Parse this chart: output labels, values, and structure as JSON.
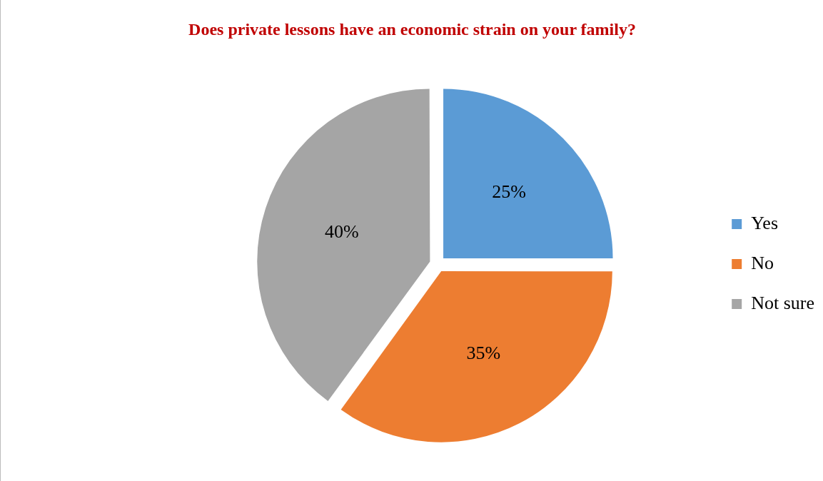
{
  "chart_data": {
    "type": "pie",
    "title": "Does private lessons have an economic strain on your family?",
    "categories": [
      "Yes",
      "No",
      "Not sure"
    ],
    "values": [
      25,
      35,
      40
    ],
    "value_labels": [
      "25%",
      "35%",
      "40%"
    ],
    "colors": [
      "#5b9bd5",
      "#ed7d31",
      "#a5a5a5"
    ],
    "legend": "right"
  }
}
